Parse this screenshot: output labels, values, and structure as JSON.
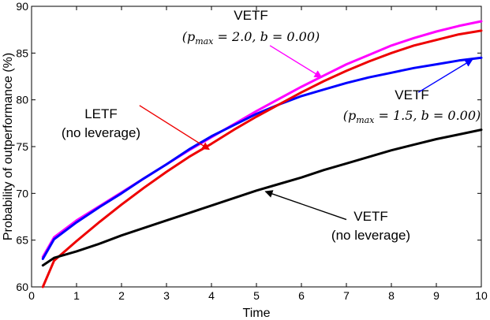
{
  "chart_data": {
    "type": "line",
    "title": "",
    "xlabel": "Time",
    "ylabel": "Probability of outperformance (%)",
    "xlim": [
      0,
      10
    ],
    "ylim": [
      60,
      90
    ],
    "xticks": [
      "0",
      "1",
      "2",
      "3",
      "4",
      "5",
      "6",
      "7",
      "8",
      "9",
      "10"
    ],
    "yticks": [
      "60",
      "65",
      "70",
      "75",
      "80",
      "85",
      "90"
    ],
    "grid": false,
    "series": [
      {
        "name": "VETF (p_max = 2.0, b = 0.00)",
        "color": "#ff00ff",
        "x": [
          0.25,
          0.5,
          1,
          1.5,
          2,
          2.5,
          3,
          3.5,
          4,
          4.5,
          5,
          5.5,
          6,
          6.5,
          7,
          7.5,
          8,
          8.5,
          9,
          9.5,
          10
        ],
        "y": [
          63.2,
          65.3,
          67.1,
          68.6,
          70.1,
          71.6,
          73.1,
          74.6,
          76.0,
          77.4,
          78.8,
          80.1,
          81.4,
          82.6,
          83.8,
          84.8,
          85.8,
          86.6,
          87.3,
          87.9,
          88.4
        ]
      },
      {
        "name": "VETF (p_max = 1.5, b = 0.00)",
        "color": "#0000ff",
        "x": [
          0.25,
          0.5,
          1,
          1.5,
          2,
          2.5,
          3,
          3.5,
          4,
          4.5,
          5,
          5.5,
          6,
          6.5,
          7,
          7.5,
          8,
          8.5,
          9,
          9.5,
          10
        ],
        "y": [
          63.0,
          65.1,
          66.9,
          68.5,
          70.0,
          71.6,
          73.1,
          74.7,
          76.1,
          77.3,
          78.5,
          79.5,
          80.4,
          81.1,
          81.8,
          82.4,
          82.9,
          83.4,
          83.8,
          84.2,
          84.5
        ]
      },
      {
        "name": "LETF (no leverage)",
        "color": "#ee0000",
        "x": [
          0.25,
          0.5,
          1,
          1.5,
          2,
          2.5,
          3,
          3.5,
          4,
          4.5,
          5,
          5.5,
          6,
          6.5,
          7,
          7.5,
          8,
          8.5,
          9,
          9.5,
          10
        ],
        "y": [
          60.0,
          62.8,
          64.9,
          66.9,
          68.8,
          70.6,
          72.3,
          73.9,
          75.3,
          76.8,
          78.2,
          79.5,
          80.8,
          82.0,
          83.1,
          84.1,
          85.0,
          85.8,
          86.4,
          87.0,
          87.4
        ]
      },
      {
        "name": "VETF (no leverage)",
        "color": "#000000",
        "x": [
          0.25,
          0.5,
          1,
          1.5,
          2,
          2.5,
          3,
          3.5,
          4,
          4.5,
          5,
          5.5,
          6,
          6.5,
          7,
          7.5,
          8,
          8.5,
          9,
          9.5,
          10
        ],
        "y": [
          62.3,
          63.1,
          63.8,
          64.6,
          65.5,
          66.3,
          67.1,
          67.9,
          68.7,
          69.5,
          70.3,
          71.0,
          71.7,
          72.5,
          73.2,
          73.9,
          74.6,
          75.2,
          75.8,
          76.3,
          76.8
        ]
      }
    ],
    "annotations": [
      {
        "id": "vetf-2",
        "color": "#ff00ff",
        "line1": "VETF",
        "line2": "(p_max = 2.0, b = 0.00)",
        "math_lhs": "(p",
        "math_sub": "max",
        "math_rhs": " = 2.0, b = 0.00)",
        "arrow_from": [
          5.3,
          85.8
        ],
        "arrow_to": [
          6.45,
          82.4
        ]
      },
      {
        "id": "vetf-15",
        "color": "#0000ff",
        "line1": "VETF",
        "line2": "(p_max = 1.5, b = 0.00)",
        "math_lhs": "(p",
        "math_sub": "max",
        "math_rhs": " = 1.5, b = 0.00)",
        "arrow_from": [
          8.6,
          80.8
        ],
        "arrow_to": [
          9.8,
          84.3
        ]
      },
      {
        "id": "letf",
        "color": "#ee0000",
        "line1": "LETF",
        "line2": "(no leverage)",
        "arrow_from": [
          2.4,
          79.4
        ],
        "arrow_to": [
          3.95,
          74.7
        ]
      },
      {
        "id": "vetf-nolev",
        "color": "#000000",
        "line1": "VETF",
        "line2": "(no leverage)",
        "arrow_from": [
          7.0,
          67.2
        ],
        "arrow_to": [
          5.2,
          70.2
        ]
      }
    ]
  }
}
